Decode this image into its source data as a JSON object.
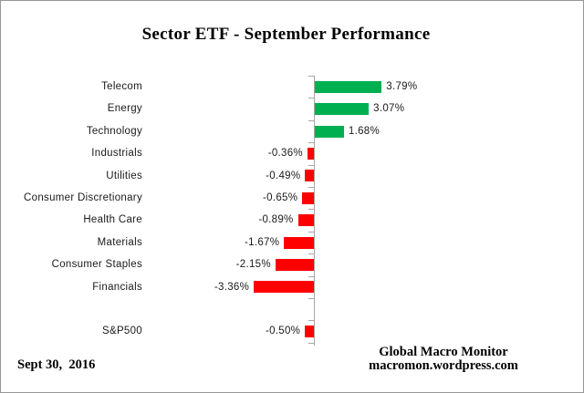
{
  "chart_data": {
    "type": "bar",
    "orientation": "horizontal",
    "title": "Sector ETF - September Performance",
    "value_unit": "percent",
    "positive_color": "#00B050",
    "negative_color": "#FF0000",
    "axis_color": "#A6A6A6",
    "legend": "none",
    "grid": false,
    "xlim": [
      -4,
      4
    ],
    "rows": [
      {
        "label": "Telecom",
        "value": 3.79,
        "display": "3.79%"
      },
      {
        "label": "Energy",
        "value": 3.07,
        "display": "3.07%"
      },
      {
        "label": "Technology",
        "value": 1.68,
        "display": "1.68%"
      },
      {
        "label": "Industrials",
        "value": -0.36,
        "display": "-0.36%"
      },
      {
        "label": "Utilities",
        "value": -0.49,
        "display": "-0.49%"
      },
      {
        "label": "Consumer Discretionary",
        "value": -0.65,
        "display": "-0.65%"
      },
      {
        "label": "Health Care",
        "value": -0.89,
        "display": "-0.89%"
      },
      {
        "label": "Materials",
        "value": -1.67,
        "display": "-1.67%"
      },
      {
        "label": "Consumer Staples",
        "value": -2.15,
        "display": "-2.15%"
      },
      {
        "label": "Financials",
        "value": -3.36,
        "display": "-3.36%"
      },
      {
        "label": "",
        "value": null,
        "display": ""
      },
      {
        "label": "S&P500",
        "value": -0.5,
        "display": "-0.50%"
      }
    ]
  },
  "footer": {
    "date_label": "Sept 30,  2016",
    "attribution": {
      "line1": "Global Macro Monitor",
      "line2": "macromon.wordpress.com"
    }
  }
}
